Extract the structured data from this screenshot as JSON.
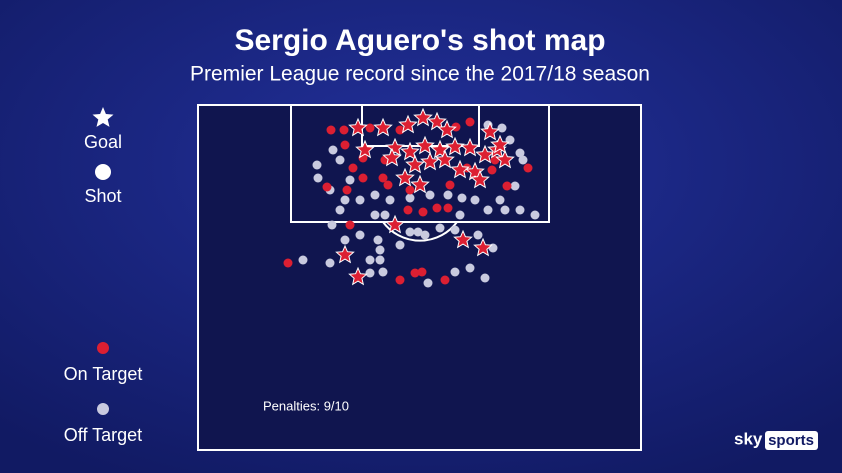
{
  "chart_data": {
    "type": "scatter",
    "title": "Sergio Aguero's shot map",
    "subtitle": "Premier League record since the 2017/18 season",
    "annotation": "Penalties: 9/10",
    "xlim": [
      -22.2,
      22.1
    ],
    "ylim": [
      0,
      34.5
    ],
    "marker_legend": [
      {
        "label": "Goal",
        "marker": "star"
      },
      {
        "label": "Shot",
        "marker": "circle"
      }
    ],
    "series": [
      {
        "name": "Off Target",
        "color": "#c9cadf",
        "x": [
          -10.2,
          -9.0,
          -7.5,
          -6.0,
          -4.5,
          -3.0,
          -4.5,
          -3.5,
          -8.0,
          8.0,
          9.5,
          10.0,
          11.5,
          8.5,
          6.8,
          5.5,
          4.2,
          2.8,
          -8.8,
          -7.5,
          -6.0,
          -4.2,
          -4.0,
          -2.0,
          0.5,
          2.0,
          3.5,
          5.8,
          7.3,
          -11.7,
          -9.0,
          -5.0,
          -3.7,
          0.8,
          3.5,
          5.0,
          6.5,
          -5.0,
          -4.0,
          -1.0,
          -0.2,
          -8.7,
          -8.0,
          9.0,
          8.2,
          10.0,
          10.3,
          6.8,
          -7.0,
          -10.3,
          1.0,
          -1.0,
          4.0
        ],
        "y": [
          7.3,
          8.5,
          9.5,
          9.5,
          9.0,
          9.5,
          11.0,
          11.0,
          10.5,
          9.5,
          8.1,
          10.5,
          11.0,
          10.5,
          10.5,
          9.5,
          9.3,
          9.0,
          12.0,
          13.5,
          13.0,
          13.5,
          14.5,
          14.0,
          13.0,
          12.3,
          12.5,
          13.0,
          14.3,
          15.5,
          15.8,
          16.8,
          16.7,
          17.8,
          16.7,
          16.3,
          17.3,
          15.5,
          15.5,
          12.7,
          12.7,
          4.5,
          5.5,
          3.5,
          2.3,
          4.8,
          5.5,
          2.0,
          7.5,
          6.0,
          9.0,
          9.3,
          11.0
        ]
      },
      {
        "name": "On Target",
        "color": "#dc1f32",
        "x": [
          -8.9,
          -7.6,
          -5.0,
          -2.0,
          5.0,
          3.6,
          -7.5,
          -5.7,
          -3.5,
          -6.7,
          -3.7,
          -3.2,
          -5.7,
          -1.0,
          1.7,
          2.8,
          0.3,
          -1.2,
          -7.0,
          -9.3,
          -7.3,
          10.8,
          8.7,
          7.5,
          -13.2,
          -2.0,
          -0.5,
          2.5,
          0.2,
          4.7,
          3.0,
          7.2,
          -6.2,
          -3.7,
          -1.2,
          0.3,
          1.7,
          2.7,
          7.0,
          -2.5,
          -1.0,
          0.5,
          2.0,
          3.5,
          5.0,
          6.5,
          7.7,
          8.5,
          -0.5,
          1.0,
          2.5,
          4.0,
          5.5,
          6.0,
          0.0,
          -1.5,
          -2.5,
          4.3,
          6.3,
          -7.5,
          -6.2,
          -2.8,
          8.0,
          -5.5
        ],
        "y": [
          2.5,
          2.5,
          2.3,
          2.5,
          1.7,
          2.2,
          4.0,
          5.3,
          5.5,
          6.3,
          7.3,
          8.0,
          7.3,
          8.5,
          10.3,
          10.3,
          10.7,
          10.5,
          12.0,
          8.2,
          8.5,
          6.3,
          8.1,
          5.5,
          15.8,
          17.5,
          16.8,
          17.5,
          16.7,
          6.3,
          8.0,
          6.5,
          2.3,
          2.3,
          2.0,
          1.3,
          1.7,
          2.5,
          2.7,
          4.3,
          4.7,
          4.1,
          4.5,
          4.2,
          4.3,
          5.0,
          4.5,
          5.5,
          6.0,
          5.7,
          5.5,
          6.5,
          6.7,
          7.5,
          8.0,
          7.3,
          12.0,
          13.5,
          14.3,
          15.0,
          17.2,
          5.3,
          4.0,
          4.5
        ],
        "goal": [
          false,
          false,
          false,
          false,
          false,
          false,
          false,
          false,
          false,
          false,
          false,
          false,
          false,
          false,
          false,
          false,
          false,
          false,
          false,
          false,
          false,
          false,
          false,
          false,
          false,
          false,
          false,
          false,
          false,
          false,
          false,
          false,
          true,
          true,
          true,
          true,
          true,
          true,
          true,
          true,
          true,
          true,
          true,
          true,
          true,
          true,
          true,
          true,
          true,
          true,
          true,
          true,
          true,
          true,
          true,
          true,
          true,
          true,
          true,
          true,
          true,
          true,
          true,
          true
        ]
      }
    ],
    "logo": {
      "brand": "sky",
      "channel": "sports"
    }
  }
}
